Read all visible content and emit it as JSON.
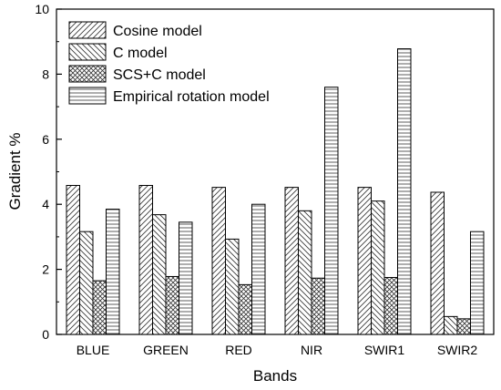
{
  "chart_data": {
    "type": "bar",
    "xlabel": "Bands",
    "ylabel": "Gradient %",
    "ylim": [
      0,
      10
    ],
    "yticks": [
      "0",
      "2",
      "4",
      "6",
      "8",
      "10"
    ],
    "grid": false,
    "legend_position": "top-left",
    "categories": [
      "BLUE",
      "GREEN",
      "RED",
      "NIR",
      "SWIR1",
      "SWIR2"
    ],
    "series": [
      {
        "name": "Cosine model",
        "pattern": "diagonal-up",
        "values": [
          4.58,
          4.58,
          4.52,
          4.52,
          4.52,
          4.37
        ]
      },
      {
        "name": "C model",
        "pattern": "diagonal-down",
        "values": [
          3.16,
          3.68,
          2.93,
          3.8,
          4.1,
          0.55
        ]
      },
      {
        "name": "SCS+C model",
        "pattern": "crosshatch",
        "values": [
          1.65,
          1.78,
          1.53,
          1.73,
          1.75,
          0.48
        ]
      },
      {
        "name": "Empirical rotation model",
        "pattern": "horizontal",
        "values": [
          3.85,
          3.45,
          4.0,
          7.6,
          8.78,
          3.16
        ]
      }
    ]
  }
}
